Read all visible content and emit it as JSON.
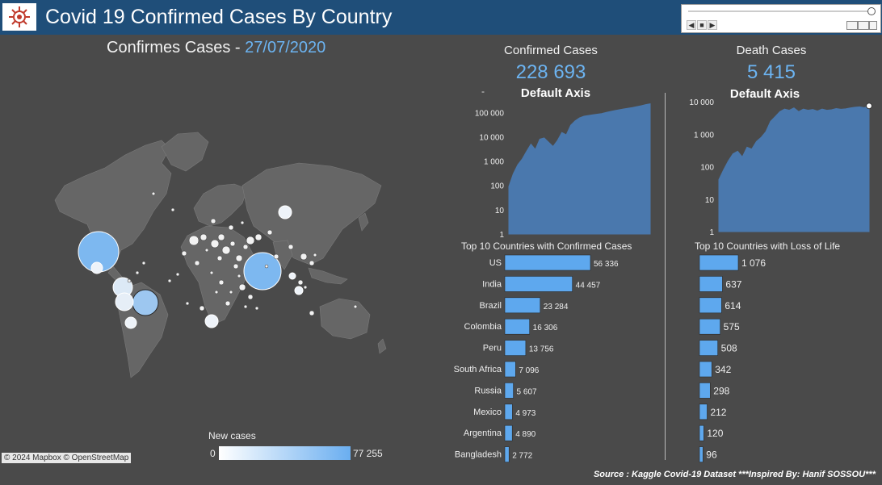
{
  "header": {
    "title": "Covid 19 Confirmed Cases By Country"
  },
  "map": {
    "title_prefix": "Confirmes Cases - ",
    "date": "27/07/2020",
    "legend_title": "New cases",
    "legend_min": "0",
    "legend_max": "77 255",
    "attribution": "© 2024 Mapbox © OpenStreetMap"
  },
  "kpis": {
    "confirmed": {
      "label": "Confirmed Cases",
      "value": "228 693",
      "axis_title": "Default Axis",
      "marker": "-"
    },
    "deaths": {
      "label": "Death Cases",
      "value": "5 415",
      "axis_title": "Default Axis"
    }
  },
  "colors": {
    "accent": "#6cb4f2",
    "bar": "#5ea8ee",
    "header": "#1f4e79",
    "area": "#4a78ad",
    "background": "#4a4a4a"
  },
  "chart_data": [
    {
      "type": "area",
      "title": "Default Axis",
      "y_scale": "log",
      "y_ticks": [
        "100 000",
        "10 000",
        "1 000",
        "100",
        "10",
        "1"
      ],
      "ylim": [
        1,
        300000
      ],
      "series": [
        {
          "values": [
            90,
            300,
            700,
            1200,
            2500,
            5000,
            3000,
            8000,
            9000,
            6000,
            4000,
            7000,
            15000,
            12000,
            30000,
            45000,
            60000,
            70000,
            75000,
            80000,
            85000,
            90000,
            100000,
            110000,
            120000,
            130000,
            140000,
            150000,
            160000,
            175000,
            190000,
            210000,
            228693
          ]
        }
      ]
    },
    {
      "type": "area",
      "title": "Default Axis",
      "y_scale": "log",
      "y_ticks": [
        "10 000",
        "1 000",
        "100",
        "10",
        "1"
      ],
      "ylim": [
        1,
        12000
      ],
      "series": [
        {
          "values": [
            40,
            80,
            150,
            250,
            300,
            200,
            400,
            350,
            600,
            800,
            1200,
            2500,
            3500,
            5000,
            6000,
            5500,
            6500,
            5000,
            6000,
            5500,
            5800,
            5200,
            6000,
            5500,
            5700,
            6200,
            5900,
            6100,
            6500,
            6800,
            7000,
            6600,
            7500
          ]
        }
      ]
    },
    {
      "type": "bar",
      "title": "Top 10 Countries with Confirmed Cases",
      "categories": [
        "US",
        "India",
        "Brazil",
        "Colombia",
        "Peru",
        "South Africa",
        "Russia",
        "Mexico",
        "Argentina",
        "Bangladesh"
      ],
      "values": [
        56336,
        44457,
        23284,
        16306,
        13756,
        7096,
        5607,
        4973,
        4890,
        2772
      ],
      "labels": [
        "56 336",
        "44 457",
        "23 284",
        "16 306",
        "13 756",
        "7 096",
        "5 607",
        "4 973",
        "4 890",
        "2 772"
      ]
    },
    {
      "type": "bar",
      "title": "Top 10 Countries with Loss of Life",
      "values": [
        1076,
        637,
        614,
        575,
        508,
        342,
        298,
        212,
        120,
        96
      ],
      "labels": [
        "1 076",
        "637",
        "614",
        "575",
        "508",
        "342",
        "298",
        "212",
        "120",
        "96"
      ]
    }
  ],
  "footer": {
    "source": "Source : Kaggle Covid-19 Dataset ***Inspired By: Hanif SOSSOU***"
  }
}
